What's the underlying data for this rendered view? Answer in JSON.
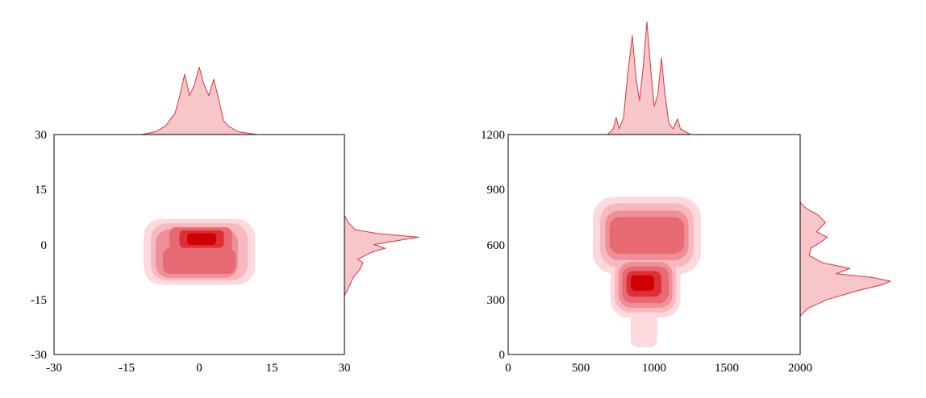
{
  "colors": {
    "level1": "#fcd9dc",
    "level2": "#f7b9bf",
    "level3": "#ef8f98",
    "level4": "#e76a73",
    "level5": "#dc3038",
    "level6": "#d10000",
    "marginal_fill": "#f7c6c9",
    "marginal_line": "#d8343c",
    "axis": "#000000"
  },
  "chart_data": [
    {
      "type": "contour-density-with-marginals",
      "xlim": [
        -30,
        30
      ],
      "ylim": [
        -30,
        30
      ],
      "x_ticks": [
        "-30",
        "-15",
        "0",
        "15",
        "30"
      ],
      "y_ticks": [
        "-30",
        "-15",
        "0",
        "15",
        "30"
      ],
      "contour_levels": [
        {
          "level": 1,
          "center": [
            0,
            -2
          ],
          "radius": [
            11.5,
            9.0
          ]
        },
        {
          "level": 2,
          "center": [
            0,
            -2
          ],
          "radius": [
            10.0,
            7.8
          ]
        },
        {
          "level": 3,
          "center": [
            -0.5,
            -2.5
          ],
          "radius": [
            8.5,
            6.6
          ]
        },
        {
          "level": 4,
          "center": [
            0,
            -4.5
          ],
          "radius": [
            7.5,
            3.5
          ]
        },
        {
          "level": 4,
          "center": [
            0.3,
            1.5
          ],
          "radius": [
            6.5,
            3.2
          ]
        },
        {
          "level": 5,
          "center": [
            0.5,
            1.5
          ],
          "radius": [
            4.6,
            2.4
          ]
        },
        {
          "level": 6,
          "center": [
            0.5,
            1.5
          ],
          "radius": [
            3.0,
            1.6
          ]
        }
      ],
      "x_marginal": [
        {
          "x": -30,
          "d": 0
        },
        {
          "x": -12,
          "d": 0
        },
        {
          "x": -9,
          "d": 0.04
        },
        {
          "x": -7,
          "d": 0.12
        },
        {
          "x": -5,
          "d": 0.3
        },
        {
          "x": -4,
          "d": 0.55
        },
        {
          "x": -3,
          "d": 0.85
        },
        {
          "x": -2,
          "d": 0.55
        },
        {
          "x": -1,
          "d": 0.7
        },
        {
          "x": 0,
          "d": 0.95
        },
        {
          "x": 1,
          "d": 0.7
        },
        {
          "x": 2,
          "d": 0.55
        },
        {
          "x": 3,
          "d": 0.78
        },
        {
          "x": 4,
          "d": 0.5
        },
        {
          "x": 5,
          "d": 0.2
        },
        {
          "x": 6,
          "d": 0.12
        },
        {
          "x": 8,
          "d": 0.04
        },
        {
          "x": 12,
          "d": 0
        },
        {
          "x": 30,
          "d": 0
        }
      ],
      "y_marginal": [
        {
          "y": -14,
          "d": 0
        },
        {
          "y": -12,
          "d": 0.05
        },
        {
          "y": -9,
          "d": 0.12
        },
        {
          "y": -7,
          "d": 0.2
        },
        {
          "y": -5,
          "d": 0.25
        },
        {
          "y": -4,
          "d": 0.18
        },
        {
          "y": -2,
          "d": 0.38
        },
        {
          "y": -1,
          "d": 0.55
        },
        {
          "y": 0,
          "d": 0.4
        },
        {
          "y": 1,
          "d": 0.7
        },
        {
          "y": 2,
          "d": 1.0
        },
        {
          "y": 3,
          "d": 0.45
        },
        {
          "y": 4,
          "d": 0.15
        },
        {
          "y": 6,
          "d": 0.05
        },
        {
          "y": 8,
          "d": 0
        }
      ]
    },
    {
      "type": "contour-density-with-marginals",
      "xlim": [
        0,
        2000
      ],
      "ylim": [
        0,
        1200
      ],
      "x_ticks": [
        "0",
        "500",
        "1000",
        "1500",
        "2000"
      ],
      "y_ticks": [
        "0",
        "300",
        "600",
        "900",
        "1200"
      ],
      "contour_levels": [
        {
          "level": 1,
          "center": [
            950,
            650
          ],
          "radius": [
            370,
            210
          ]
        },
        {
          "level": 1,
          "center": [
            940,
            380
          ],
          "radius": [
            240,
            180
          ]
        },
        {
          "level": 1,
          "center": [
            930,
            150
          ],
          "radius": [
            90,
            110
          ]
        },
        {
          "level": 2,
          "center": [
            950,
            650
          ],
          "radius": [
            320,
            175
          ]
        },
        {
          "level": 2,
          "center": [
            940,
            380
          ],
          "radius": [
            210,
            150
          ]
        },
        {
          "level": 3,
          "center": [
            950,
            650
          ],
          "radius": [
            285,
            135
          ]
        },
        {
          "level": 3,
          "center": [
            940,
            380
          ],
          "radius": [
            185,
            125
          ]
        },
        {
          "level": 4,
          "center": [
            950,
            650
          ],
          "radius": [
            255,
            100
          ]
        },
        {
          "level": 4,
          "center": [
            940,
            380
          ],
          "radius": [
            160,
            100
          ]
        },
        {
          "level": 5,
          "center": [
            930,
            385
          ],
          "radius": [
            120,
            70
          ]
        },
        {
          "level": 6,
          "center": [
            920,
            390
          ],
          "radius": [
            80,
            42
          ]
        }
      ],
      "x_marginal": [
        {
          "x": 0,
          "d": 0
        },
        {
          "x": 680,
          "d": 0
        },
        {
          "x": 720,
          "d": 0.05
        },
        {
          "x": 740,
          "d": 0.15
        },
        {
          "x": 760,
          "d": 0.05
        },
        {
          "x": 790,
          "d": 0.15
        },
        {
          "x": 820,
          "d": 0.55
        },
        {
          "x": 850,
          "d": 0.88
        },
        {
          "x": 875,
          "d": 0.5
        },
        {
          "x": 900,
          "d": 0.3
        },
        {
          "x": 925,
          "d": 0.6
        },
        {
          "x": 950,
          "d": 1.0
        },
        {
          "x": 975,
          "d": 0.6
        },
        {
          "x": 1000,
          "d": 0.25
        },
        {
          "x": 1025,
          "d": 0.35
        },
        {
          "x": 1050,
          "d": 0.68
        },
        {
          "x": 1070,
          "d": 0.4
        },
        {
          "x": 1100,
          "d": 0.1
        },
        {
          "x": 1130,
          "d": 0.05
        },
        {
          "x": 1160,
          "d": 0.14
        },
        {
          "x": 1180,
          "d": 0.05
        },
        {
          "x": 1250,
          "d": 0
        },
        {
          "x": 2000,
          "d": 0
        }
      ],
      "y_marginal": [
        {
          "y": 210,
          "d": 0
        },
        {
          "y": 250,
          "d": 0.08
        },
        {
          "y": 300,
          "d": 0.3
        },
        {
          "y": 350,
          "d": 0.65
        },
        {
          "y": 380,
          "d": 0.9
        },
        {
          "y": 400,
          "d": 1.0
        },
        {
          "y": 420,
          "d": 0.8
        },
        {
          "y": 440,
          "d": 0.4
        },
        {
          "y": 470,
          "d": 0.55
        },
        {
          "y": 500,
          "d": 0.25
        },
        {
          "y": 540,
          "d": 0.1
        },
        {
          "y": 580,
          "d": 0.12
        },
        {
          "y": 610,
          "d": 0.22
        },
        {
          "y": 640,
          "d": 0.3
        },
        {
          "y": 670,
          "d": 0.18
        },
        {
          "y": 720,
          "d": 0.28
        },
        {
          "y": 760,
          "d": 0.2
        },
        {
          "y": 800,
          "d": 0.06
        },
        {
          "y": 830,
          "d": 0
        }
      ]
    }
  ]
}
